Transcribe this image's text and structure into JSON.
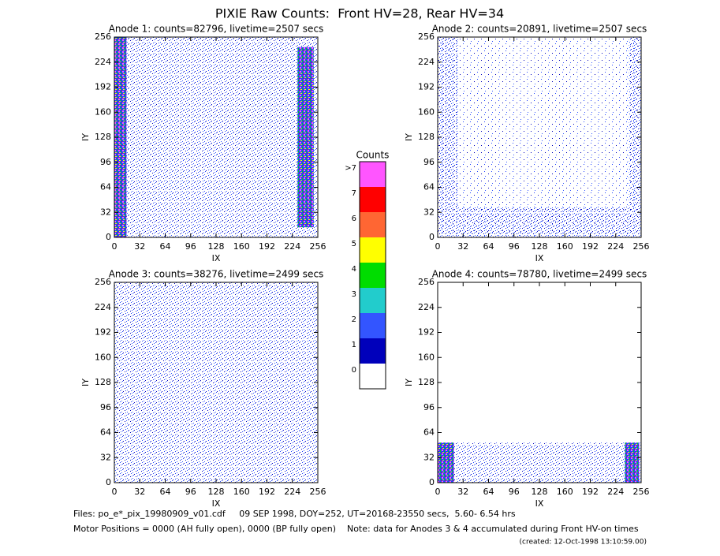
{
  "title": "PIXIE Raw Counts:  Front HV=28, Rear HV=34",
  "chart_data": [
    {
      "type": "heatmap",
      "title": "Anode 1: counts=82796, livetime=2507 secs",
      "xlabel": "IX",
      "ylabel": "IY",
      "xlim": [
        0,
        256
      ],
      "ylim": [
        0,
        256
      ],
      "xticks": [
        0,
        32,
        64,
        96,
        128,
        160,
        192,
        224,
        256
      ],
      "yticks": [
        0,
        32,
        64,
        96,
        128,
        160,
        192,
        224,
        256
      ]
    },
    {
      "type": "heatmap",
      "title": "Anode 2: counts=20891, livetime=2507 secs",
      "xlabel": "IX",
      "ylabel": "IY",
      "xlim": [
        0,
        256
      ],
      "ylim": [
        0,
        256
      ],
      "xticks": [
        0,
        32,
        64,
        96,
        128,
        160,
        192,
        224,
        256
      ],
      "yticks": [
        0,
        32,
        64,
        96,
        128,
        160,
        192,
        224,
        256
      ]
    },
    {
      "type": "heatmap",
      "title": "Anode 3: counts=38276, livetime=2499 secs",
      "xlabel": "IX",
      "ylabel": "IY",
      "xlim": [
        0,
        256
      ],
      "ylim": [
        0,
        256
      ],
      "xticks": [
        0,
        32,
        64,
        96,
        128,
        160,
        192,
        224,
        256
      ],
      "yticks": [
        0,
        32,
        64,
        96,
        128,
        160,
        192,
        224,
        256
      ]
    },
    {
      "type": "heatmap",
      "title": "Anode 4: counts=78780, livetime=2499 secs",
      "xlabel": "IX",
      "ylabel": "IY",
      "xlim": [
        0,
        256
      ],
      "ylim": [
        0,
        256
      ],
      "xticks": [
        0,
        32,
        64,
        96,
        128,
        160,
        192,
        224,
        256
      ],
      "yticks": [
        0,
        32,
        64,
        96,
        128,
        160,
        192,
        224,
        256
      ]
    }
  ],
  "colorbar": {
    "title": "Counts",
    "levels": [
      {
        "label": ">7",
        "color": "#ff55ff"
      },
      {
        "label": 7,
        "color": "#ff0000"
      },
      {
        "label": 6,
        "color": "#ff6633"
      },
      {
        "label": 5,
        "color": "#ffff00"
      },
      {
        "label": 4,
        "color": "#00dd00"
      },
      {
        "label": 3,
        "color": "#22cccc"
      },
      {
        "label": 2,
        "color": "#3355ff"
      },
      {
        "label": 1,
        "color": "#0000bb"
      },
      {
        "label": 0,
        "color": "#ffffff"
      }
    ]
  },
  "footer": {
    "files": "Files: po_e*_pix_19980909_v01.cdf     09 SEP 1998, DOY=252, UT=20168-23550 secs,  5.60- 6.54 hrs",
    "motor": "Motor Positions = 0000 (AH fully open), 0000 (BP fully open)    Note: data for Anodes 3 & 4 accumulated during Front HV-on times",
    "created": "(created: 12-Oct-1998 13:10:59.00)"
  }
}
